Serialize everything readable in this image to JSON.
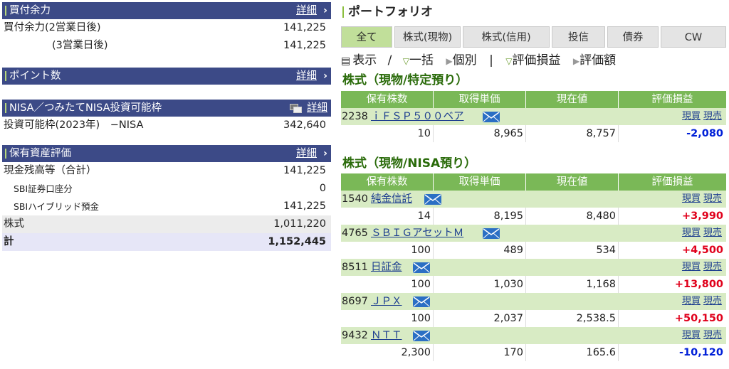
{
  "left": {
    "buying_power": {
      "title": "買付余力",
      "more": "詳細",
      "rows": [
        {
          "label": "買付余力(2営業日後)",
          "value": "141,225"
        },
        {
          "label": "(3営業日後)",
          "value": "141,225"
        }
      ]
    },
    "points": {
      "title": "ポイント数",
      "more": "詳細"
    },
    "nisa": {
      "title": "NISA／つみたてNISA投資可能枠",
      "more": "詳細",
      "rows": [
        {
          "label": "投資可能枠(2023年)　−NISA",
          "value": "342,640"
        }
      ]
    },
    "assets": {
      "title": "保有資産評価",
      "more": "詳細",
      "rows": [
        {
          "label": "現金残高等（合計）",
          "value": "141,225"
        },
        {
          "label": "SBI証券口座分",
          "value": "0"
        },
        {
          "label": "SBIハイブリッド預金",
          "value": "141,225"
        },
        {
          "label": "株式",
          "value": "1,011,220"
        },
        {
          "label": "計",
          "value": "1,152,445"
        }
      ]
    }
  },
  "portfolio": {
    "title": "ポートフォリオ",
    "tabs": [
      "全て",
      "株式(現物)",
      "株式(信用)",
      "投信",
      "債券",
      "CW"
    ],
    "active_tab": "全て",
    "viewbar": {
      "display": "表示",
      "sep1": "/",
      "bulk": "一括",
      "individual": "個別",
      "sep2": "|",
      "pl": "評価損益",
      "amount": "評価額"
    },
    "columns": [
      "保有株数",
      "取得単価",
      "現在値",
      "評価損益"
    ],
    "links": {
      "buy": "現買",
      "sell": "現売"
    },
    "sections": [
      {
        "title": "株式（現物/特定預り）",
        "holdings": [
          {
            "code": "2238",
            "name": "ｉＦＳＰ５００ベア",
            "qty": "10",
            "cost": "8,965",
            "price": "8,757",
            "pl": "-2,080",
            "pl_sign": "neg"
          }
        ]
      },
      {
        "title": "株式（現物/NISA預り）",
        "holdings": [
          {
            "code": "1540",
            "name": "純金信託",
            "qty": "14",
            "cost": "8,195",
            "price": "8,480",
            "pl": "+3,990",
            "pl_sign": "pos"
          },
          {
            "code": "4765",
            "name": "ＳＢＩＧアセットＭ",
            "qty": "100",
            "cost": "489",
            "price": "534",
            "pl": "+4,500",
            "pl_sign": "pos"
          },
          {
            "code": "8511",
            "name": "日証金",
            "qty": "100",
            "cost": "1,030",
            "price": "1,168",
            "pl": "+13,800",
            "pl_sign": "pos"
          },
          {
            "code": "8697",
            "name": "ＪＰＸ",
            "qty": "100",
            "cost": "2,037",
            "price": "2,538.5",
            "pl": "+50,150",
            "pl_sign": "pos"
          },
          {
            "code": "9432",
            "name": "ＮＴＴ",
            "qty": "2,300",
            "cost": "170",
            "price": "165.6",
            "pl": "-10,120",
            "pl_sign": "neg"
          }
        ]
      }
    ]
  },
  "colors": {
    "header_navy": "#3c4a87",
    "header_green": "#7ab857",
    "row_green": "#d8ebc4",
    "tab_active": "#c1df9a",
    "positive": "#e0001b",
    "negative": "#0020d8"
  }
}
